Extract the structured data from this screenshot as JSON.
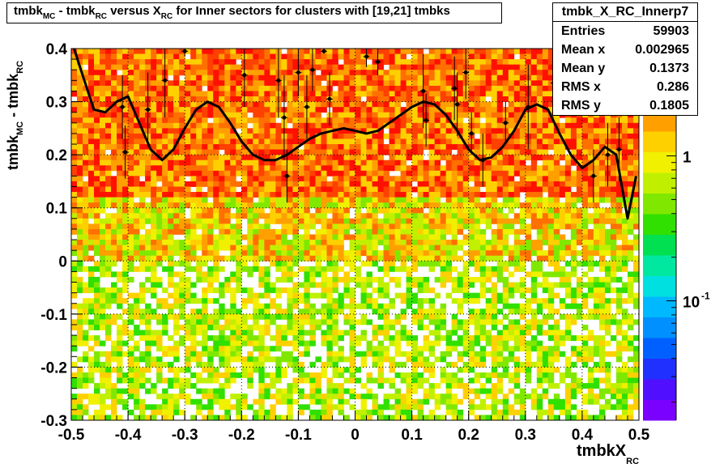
{
  "title": {
    "parts": [
      {
        "t": "tmbk",
        "sub": "MC"
      },
      {
        "t": " - tmbk",
        "sub": "RC"
      },
      {
        "t": " versus X",
        "sub": "RC"
      },
      {
        "t": " for Inner sectors for clusters with [19,21] tmbks",
        "sub": ""
      }
    ]
  },
  "stats": {
    "name": "tmbk_X_RC_Innerp7",
    "rows": [
      {
        "label": "Entries",
        "value": "59903"
      },
      {
        "label": "Mean x",
        "value": "0.002965"
      },
      {
        "label": "Mean y",
        "value": "0.1373"
      },
      {
        "label": "RMS x",
        "value": "0.286"
      },
      {
        "label": "RMS y",
        "value": "0.1805"
      }
    ]
  },
  "axes": {
    "xlabel": {
      "main": "tmbkX",
      "sub": "RC"
    },
    "ylabel": {
      "main": "tmbk",
      "sub1": "MC",
      "mid": " - tmbk",
      "sub2": "RC"
    }
  },
  "colors": {
    "palette": [
      "#7a00ff",
      "#5010ff",
      "#2030ff",
      "#0060ff",
      "#0090ff",
      "#00b8ff",
      "#00e0e0",
      "#00e8a0",
      "#00e050",
      "#30e000",
      "#80e800",
      "#c0f000",
      "#f0f000",
      "#ffd000",
      "#ffa000",
      "#ff7000",
      "#ff4000",
      "#ff1000"
    ],
    "curve": "#000000"
  },
  "chart_data": {
    "type": "heatmap",
    "xlim": [
      -0.5,
      0.5
    ],
    "ylim": [
      -0.3,
      0.4
    ],
    "x_ticks": [
      "-0.5",
      "-0.4",
      "-0.3",
      "-0.2",
      "-0.1",
      "0",
      "0.1",
      "0.2",
      "0.3",
      "0.4",
      "0.5"
    ],
    "y_ticks": [
      "-0.3",
      "-0.2",
      "-0.1",
      "0",
      "0.1",
      "0.2",
      "0.3",
      "0.4"
    ],
    "grid": true,
    "color_scale": "log",
    "z_ticks": [
      {
        "value": 1,
        "label": "1"
      },
      {
        "value": 0.1,
        "label": "10^-1"
      }
    ],
    "profile_curve": {
      "x": [
        -0.495,
        -0.48,
        -0.46,
        -0.44,
        -0.42,
        -0.4,
        -0.38,
        -0.36,
        -0.34,
        -0.32,
        -0.3,
        -0.28,
        -0.26,
        -0.24,
        -0.22,
        -0.2,
        -0.18,
        -0.16,
        -0.14,
        -0.12,
        -0.1,
        -0.08,
        -0.06,
        -0.04,
        -0.02,
        0.0,
        0.02,
        0.04,
        0.06,
        0.08,
        0.1,
        0.12,
        0.14,
        0.16,
        0.18,
        0.2,
        0.22,
        0.24,
        0.26,
        0.28,
        0.3,
        0.32,
        0.34,
        0.36,
        0.38,
        0.4,
        0.42,
        0.44,
        0.46,
        0.48,
        0.495
      ],
      "y": [
        0.4,
        0.35,
        0.285,
        0.28,
        0.3,
        0.31,
        0.26,
        0.21,
        0.19,
        0.21,
        0.25,
        0.285,
        0.3,
        0.29,
        0.26,
        0.225,
        0.2,
        0.19,
        0.19,
        0.2,
        0.215,
        0.23,
        0.24,
        0.245,
        0.25,
        0.245,
        0.24,
        0.245,
        0.26,
        0.275,
        0.29,
        0.3,
        0.295,
        0.275,
        0.245,
        0.21,
        0.19,
        0.195,
        0.215,
        0.245,
        0.285,
        0.295,
        0.285,
        0.24,
        0.2,
        0.175,
        0.19,
        0.215,
        0.2,
        0.08,
        0.16
      ]
    },
    "profile_points": [
      {
        "x": -0.41,
        "y": 0.29,
        "err": 0.06
      },
      {
        "x": -0.405,
        "y": 0.205,
        "err": 0.05
      },
      {
        "x": -0.365,
        "y": 0.285,
        "err": 0.07
      },
      {
        "x": -0.335,
        "y": 0.34,
        "err": 0.07
      },
      {
        "x": -0.3,
        "y": 0.395,
        "err": 0.01
      },
      {
        "x": -0.195,
        "y": 0.35,
        "err": 0.06
      },
      {
        "x": -0.135,
        "y": 0.34,
        "err": 0.07
      },
      {
        "x": -0.125,
        "y": 0.27,
        "err": 0.08
      },
      {
        "x": -0.12,
        "y": 0.16,
        "err": 0.05
      },
      {
        "x": -0.1,
        "y": 0.355,
        "err": 0.045
      },
      {
        "x": -0.085,
        "y": 0.29,
        "err": 0.06
      },
      {
        "x": -0.075,
        "y": 0.36,
        "err": 0.04
      },
      {
        "x": -0.045,
        "y": 0.305,
        "err": 0.05
      },
      {
        "x": -0.055,
        "y": 0.395,
        "err": 0.005
      },
      {
        "x": 0.02,
        "y": 0.385,
        "err": 0.02
      },
      {
        "x": 0.04,
        "y": 0.375,
        "err": 0.025
      },
      {
        "x": 0.12,
        "y": 0.32,
        "err": 0.07
      },
      {
        "x": 0.125,
        "y": 0.265,
        "err": 0.05
      },
      {
        "x": 0.175,
        "y": 0.325,
        "err": 0.06
      },
      {
        "x": 0.18,
        "y": 0.295,
        "err": 0.06
      },
      {
        "x": 0.195,
        "y": 0.355,
        "err": 0.05
      },
      {
        "x": 0.205,
        "y": 0.24,
        "err": 0.04
      },
      {
        "x": 0.225,
        "y": 0.19,
        "err": 0.05
      },
      {
        "x": 0.265,
        "y": 0.26,
        "err": 0.04
      },
      {
        "x": 0.305,
        "y": 0.29,
        "err": 0.08
      },
      {
        "x": 0.35,
        "y": 0.335,
        "err": 0.05
      },
      {
        "x": 0.42,
        "y": 0.16,
        "err": 0.05
      },
      {
        "x": 0.445,
        "y": 0.2,
        "err": 0.06
      },
      {
        "x": 0.455,
        "y": 0.305,
        "err": 0.03
      },
      {
        "x": 0.465,
        "y": 0.21,
        "err": 0.06
      }
    ]
  }
}
